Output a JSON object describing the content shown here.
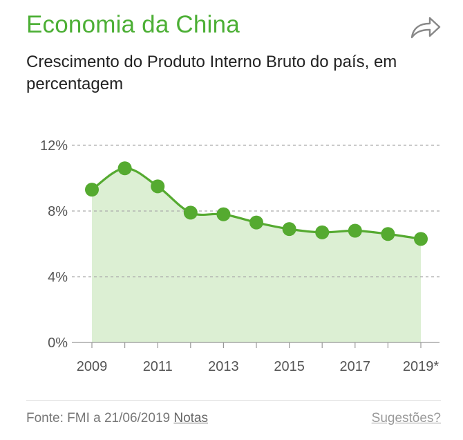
{
  "header": {
    "title": "Economia da China",
    "subtitle": "Crescimento do Produto Interno Bruto do país, em percentagem"
  },
  "share": {
    "icon": "share-icon"
  },
  "chart_data": {
    "type": "area",
    "x": [
      2009,
      2010,
      2011,
      2012,
      2013,
      2014,
      2015,
      2016,
      2017,
      2018,
      2019
    ],
    "series": [
      {
        "values": [
          9.3,
          10.6,
          9.5,
          7.9,
          7.8,
          7.3,
          6.9,
          6.7,
          6.8,
          6.6,
          6.3
        ]
      }
    ],
    "ylim": [
      0,
      12
    ],
    "yticks": [
      0,
      4,
      8,
      12
    ],
    "ytick_labels": [
      "0%",
      "4%",
      "8%",
      "12%"
    ],
    "xtick_labels": [
      "2009",
      "2011",
      "2013",
      "2015",
      "2017",
      "2019*"
    ],
    "xtick_values": [
      2009,
      2011,
      2013,
      2015,
      2017,
      2019
    ],
    "grid": true,
    "colors": {
      "line": "#55aa30",
      "fill": "#dcefd3",
      "grid": "#aaaaaa"
    }
  },
  "footer": {
    "source": "Fonte: FMI a 21/06/2019",
    "notes_label": "Notas",
    "suggestions_label": "Sugestões?"
  }
}
